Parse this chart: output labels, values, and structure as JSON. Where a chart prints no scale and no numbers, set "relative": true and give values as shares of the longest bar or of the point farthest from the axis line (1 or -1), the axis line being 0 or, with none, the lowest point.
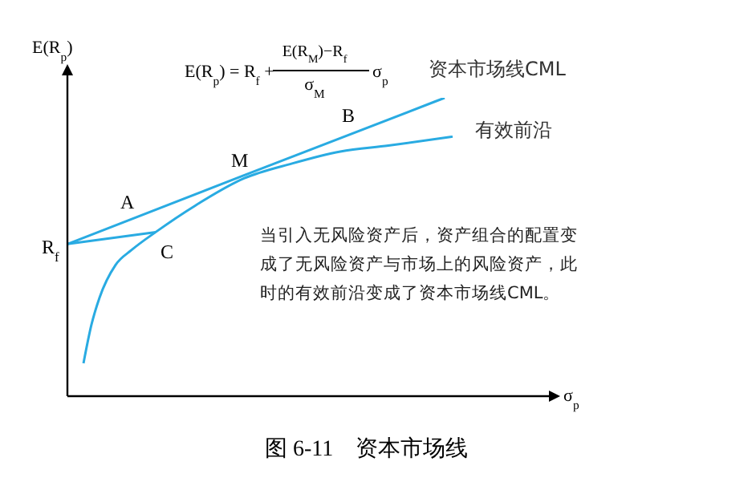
{
  "chart_data": {
    "type": "line",
    "relative": true,
    "title": "图 6-11　资本市场线",
    "ylabel": "E(R$_{p}$)",
    "categories": [
      null,
      null,
      null,
      null,
      null,
      null,
      null,
      null,
      null,
      null,
      null,
      null,
      null,
      null,
      null,
      null,
      null,
      null,
      null,
      null,
      null,
      null,
      null,
      null,
      null,
      null,
      null,
      null,
      null,
      null,
      null,
      null,
      null,
      null,
      null,
      null,
      null,
      null,
      null,
      null,
      null,
      null,
      null,
      null,
      null,
      null,
      null,
      null,
      null
    ],
    "series": [
      {
        "name": "资本市场线CML",
        "color": "#29abe2",
        "values": [
          0.51,
          null,
          null,
          null,
          null,
          null,
          null,
          null,
          null,
          null,
          null,
          null,
          null,
          null,
          null,
          null,
          null,
          null,
          null,
          null,
          null,
          null,
          0.74,
          null,
          null,
          null,
          null,
          null,
          null,
          null,
          null,
          null,
          null,
          null,
          null,
          null,
          null,
          null,
          null,
          null,
          null,
          null,
          null,
          null,
          null,
          null,
          null,
          1.0,
          null
        ]
      },
      {
        "name": "有效前沿",
        "color": "#29abe2",
        "values": [
          null,
          null,
          0.11,
          0.24,
          0.33,
          null,
          0.44,
          null,
          0.49,
          null,
          null,
          0.55,
          null,
          null,
          null,
          null,
          0.64,
          null,
          null,
          null,
          null,
          null,
          0.73,
          null,
          null,
          null,
          null,
          null,
          0.78,
          null,
          null,
          null,
          null,
          null,
          0.82,
          null,
          null,
          null,
          null,
          null,
          0.84,
          null,
          null,
          null,
          null,
          null,
          null,
          null,
          0.87
        ]
      },
      {
        "color": "#29abe2",
        "values": [
          0.51,
          null,
          null,
          null,
          null,
          null,
          null,
          null,
          null,
          null,
          null,
          0.55,
          null,
          null,
          null,
          null,
          null,
          null,
          null,
          null,
          null,
          null,
          null,
          null,
          null,
          null,
          null,
          null,
          null,
          null,
          null,
          null,
          null,
          null,
          null,
          null,
          null,
          null,
          null,
          null,
          null,
          null,
          null,
          null,
          null,
          null,
          null,
          null,
          null
        ]
      }
    ],
    "annotations": [
      "E(R$_{p}$) = R$_{f}$ +",
      "E(R$_{M}$)−R$_{f}$",
      "σ$_{M}$",
      "σ$_{p}$",
      "B",
      "M",
      "A",
      "C",
      "R$_{f}$",
      "当引入无风险资产后，资产组合的配置变成了无风险资产与市场上的风险资产，此时的有效前沿变成了资本市场线CML。",
      "σ$_{p}$"
    ],
    "marker": "none",
    "line_style": "solid",
    "grid": false,
    "legend": false
  }
}
